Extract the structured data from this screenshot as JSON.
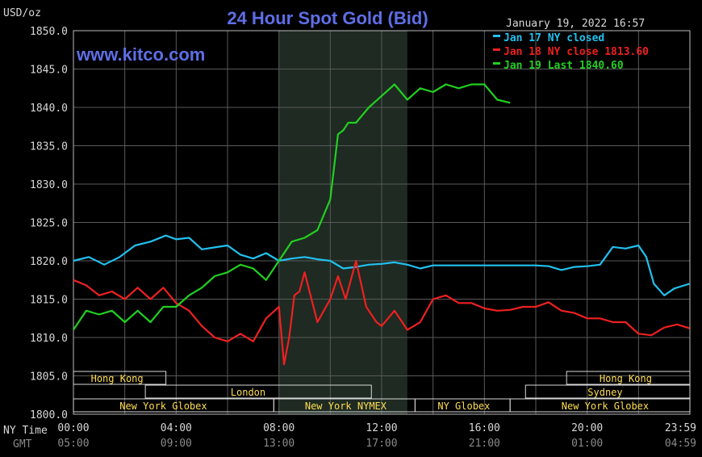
{
  "chart_data": {
    "type": "line",
    "title": "24 Hour Spot Gold (Bid)",
    "unit_label": "USD/oz",
    "timestamp": "January 19, 2022 16:57",
    "watermark": "www.kitco.com",
    "ylim": [
      1800,
      1850
    ],
    "y_ticks": [
      "1850.0",
      "1845.0",
      "1840.0",
      "1835.0",
      "1830.0",
      "1825.0",
      "1820.0",
      "1815.0",
      "1810.0",
      "1805.0",
      "1800.0"
    ],
    "x_range": [
      0,
      24
    ],
    "row_labels": {
      "ny": "NY Time",
      "gmt": "GMT"
    },
    "x_ticks_ny": [
      "00:00",
      "04:00",
      "08:00",
      "12:00",
      "16:00",
      "20:00",
      "23:59"
    ],
    "x_ticks_gmt": [
      "05:00",
      "09:00",
      "13:00",
      "17:00",
      "21:00",
      "01:00",
      "04:59"
    ],
    "shaded_hours": [
      8,
      13
    ],
    "background": "#000000",
    "grid_color": "#5a5a5a",
    "series": [
      {
        "name": "Jan 17 NY closed",
        "color": "#22c0ee",
        "x": [
          0,
          0.6,
          1.2,
          1.8,
          2.4,
          3,
          3.6,
          4,
          4.5,
          5,
          5.6,
          6,
          6.5,
          7,
          7.5,
          8,
          8.5,
          9,
          9.5,
          10,
          10.5,
          11,
          11.5,
          12,
          12.5,
          13,
          13.5,
          14,
          14.5,
          15,
          15.5,
          16,
          16.5,
          17,
          17.5,
          18,
          18.5,
          19,
          19.5,
          20,
          20.5,
          21,
          21.5,
          22,
          22.3,
          22.6,
          23,
          23.4,
          23.98
        ],
        "values": [
          1820,
          1820.5,
          1819.5,
          1820.5,
          1822,
          1822.5,
          1823.3,
          1822.8,
          1823,
          1821.5,
          1821.8,
          1822,
          1820.8,
          1820.3,
          1821,
          1820,
          1820.3,
          1820.5,
          1820.2,
          1820,
          1819,
          1819.2,
          1819.5,
          1819.6,
          1819.8,
          1819.5,
          1819,
          1819.4,
          1819.4,
          1819.4,
          1819.4,
          1819.4,
          1819.4,
          1819.4,
          1819.4,
          1819.4,
          1819.3,
          1818.8,
          1819.2,
          1819.3,
          1819.5,
          1821.8,
          1821.6,
          1822,
          1820.5,
          1817,
          1815.5,
          1816.4,
          1817
        ]
      },
      {
        "name": "Jan 18 NY close 1813.60",
        "color": "#ee2020",
        "x": [
          0,
          0.5,
          1,
          1.5,
          2,
          2.5,
          3,
          3.5,
          4,
          4.5,
          5,
          5.5,
          6,
          6.5,
          7,
          7.5,
          8,
          8.2,
          8.4,
          8.6,
          8.8,
          9,
          9.5,
          10,
          10.3,
          10.6,
          11,
          11.4,
          11.8,
          12,
          12.5,
          13,
          13.5,
          14,
          14.5,
          15,
          15.5,
          16,
          16.5,
          17,
          17.5,
          18,
          18.5,
          19,
          19.5,
          20,
          20.5,
          21,
          21.5,
          22,
          22.5,
          23,
          23.5,
          23.98
        ],
        "values": [
          1817.5,
          1816.8,
          1815.5,
          1816,
          1815,
          1816.5,
          1815,
          1816.5,
          1814.5,
          1813.5,
          1811.5,
          1810,
          1809.5,
          1810.5,
          1809.5,
          1812.5,
          1814,
          1806.5,
          1810,
          1815.5,
          1816,
          1818.5,
          1812,
          1815,
          1818,
          1815,
          1820,
          1814,
          1812,
          1811.5,
          1813.5,
          1811,
          1812,
          1815,
          1815.5,
          1814.5,
          1814.5,
          1813.8,
          1813.5,
          1813.6,
          1814,
          1814,
          1814.6,
          1813.5,
          1813.2,
          1812.5,
          1812.5,
          1812,
          1812,
          1810.5,
          1810.3,
          1811.3,
          1811.7,
          1811.2
        ]
      },
      {
        "name": "Jan 19 Last 1840.60",
        "color": "#22d020",
        "x": [
          0,
          0.5,
          1,
          1.5,
          2,
          2.5,
          3,
          3.5,
          4,
          4.5,
          5,
          5.5,
          6,
          6.5,
          7,
          7.5,
          8,
          8.5,
          9,
          9.5,
          10,
          10.3,
          10.5,
          10.7,
          11,
          11.5,
          12,
          12.5,
          13,
          13.5,
          14,
          14.5,
          15,
          15.5,
          16,
          16.5,
          17
        ],
        "values": [
          1811,
          1813.5,
          1813,
          1813.5,
          1812,
          1813.5,
          1812,
          1814,
          1814,
          1815.5,
          1816.5,
          1818,
          1818.5,
          1819.5,
          1819,
          1817.5,
          1820,
          1822.5,
          1823,
          1824,
          1828,
          1836.5,
          1837,
          1838,
          1838,
          1840,
          1841.5,
          1843,
          1841,
          1842.5,
          1842,
          1843,
          1842.5,
          1843,
          1843,
          1841,
          1840.6
        ]
      }
    ],
    "sessions": [
      {
        "name": "Hong Kong",
        "row": 0,
        "start": 0,
        "end": 3.6,
        "label_at": 1.7
      },
      {
        "name": "Hong Kong",
        "row": 0,
        "start": 19.2,
        "end": 23.98,
        "label_at": 21.5
      },
      {
        "name": "London",
        "row": 1,
        "start": 2.8,
        "end": 11.6,
        "label_at": 6.8
      },
      {
        "name": "Sydney",
        "row": 1,
        "start": 17.6,
        "end": 23.98,
        "label_at": 20.7
      },
      {
        "name": "New York Globex",
        "row": 2,
        "start": 0,
        "end": 7.8,
        "label_at": 3.5
      },
      {
        "name": "New York NYMEX",
        "row": 2,
        "start": 7.8,
        "end": 13.3,
        "label_at": 10.6
      },
      {
        "name": "NY Globex",
        "row": 2,
        "start": 13.3,
        "end": 17.0,
        "label_at": 15.2
      },
      {
        "name": "New York Globex",
        "row": 2,
        "start": 17.0,
        "end": 23.98,
        "label_at": 20.7
      }
    ]
  }
}
